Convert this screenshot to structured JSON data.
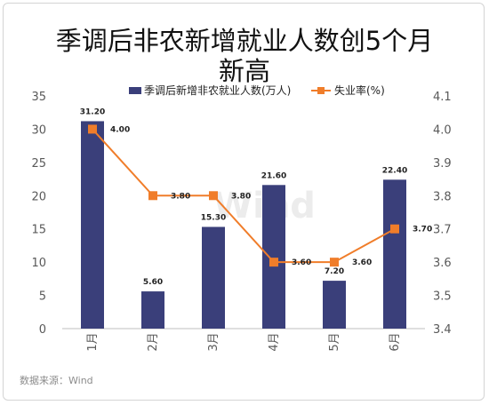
{
  "chart_data": {
    "type": "bar+line",
    "title_lines": [
      "季调后非农新增就业人数创5个月",
      "新高"
    ],
    "categories": [
      "1月",
      "2月",
      "3月",
      "4月",
      "5月",
      "6月"
    ],
    "series": [
      {
        "name": "季调后新增非农就业人数(万人)",
        "type": "bar",
        "axis": "left",
        "values": [
          31.2,
          5.6,
          15.3,
          21.6,
          7.2,
          22.4
        ],
        "labels": [
          "31.20",
          "5.60",
          "15.30",
          "21.60",
          "7.20",
          "22.40"
        ],
        "color": "#3a3f7a"
      },
      {
        "name": "失业率(%)",
        "type": "line",
        "axis": "right",
        "values": [
          4.0,
          3.8,
          3.8,
          3.6,
          3.6,
          3.7
        ],
        "labels": [
          "4.00",
          "3.80",
          "3.80",
          "3.60",
          "3.60",
          "3.70"
        ],
        "color": "#f07d2a"
      }
    ],
    "y_left": {
      "min": 0,
      "max": 35,
      "step": 5,
      "ticks": [
        "0",
        "5",
        "10",
        "15",
        "20",
        "25",
        "30",
        "35"
      ]
    },
    "y_right": {
      "min": 3.4,
      "max": 4.1,
      "step": 0.1,
      "ticks": [
        "3.4",
        "3.5",
        "3.6",
        "3.7",
        "3.8",
        "3.9",
        "4.0",
        "4.1"
      ]
    },
    "legend_position": "top",
    "grid": false
  },
  "watermark": "Wind",
  "source": "数据来源：Wind"
}
